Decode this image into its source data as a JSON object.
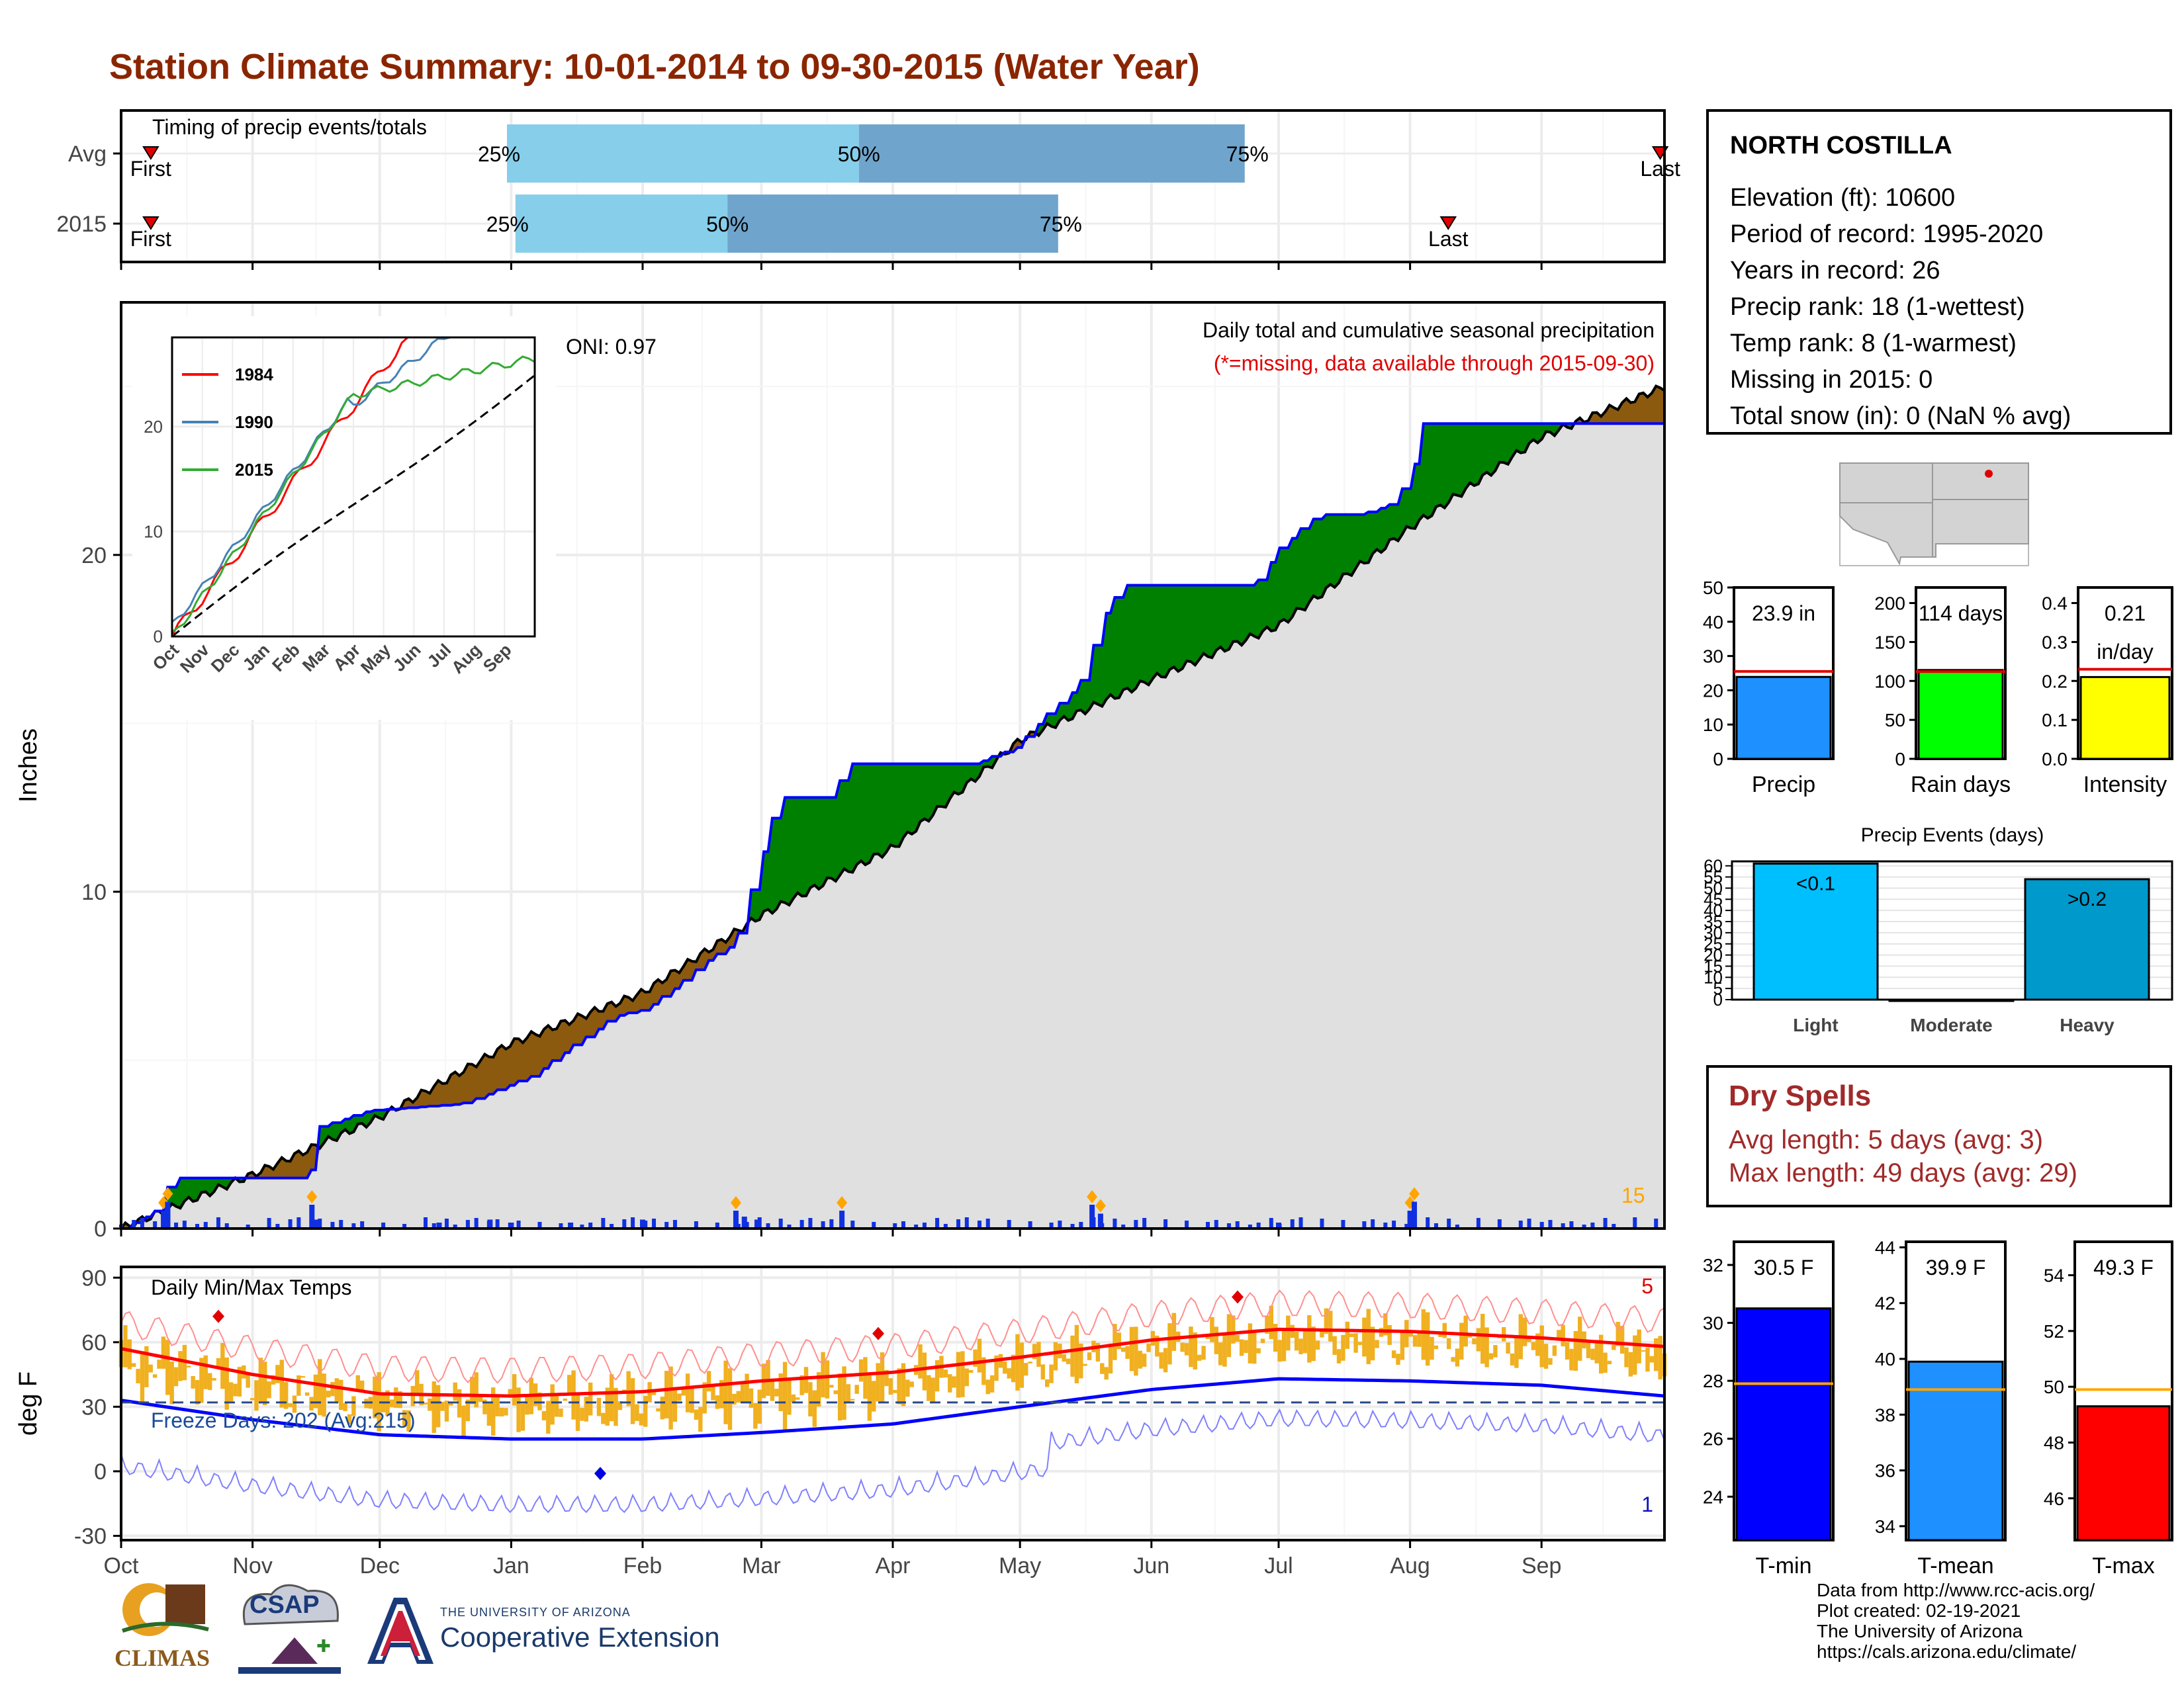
{
  "title": "Station Climate Summary: 10-01-2014 to 09-30-2015 (Water Year)",
  "station": {
    "name": "NORTH COSTILLA",
    "lines": [
      "Elevation (ft): 10600",
      "Period of record: 1995-2020",
      "Years in record: 26",
      "Precip rank: 18 (1-wettest)",
      "Temp rank: 8 (1-warmest)",
      "Missing in 2015: 0",
      "Total snow (in): 0 (NaN % avg)"
    ]
  },
  "dry_spells": {
    "title": "Dry Spells",
    "avg_line": "Avg length: 5 days (avg: 3)",
    "max_line": "Max length: 49 days (avg: 29)"
  },
  "footer": {
    "lines": [
      "Data from http://www.rcc-acis.org/",
      "Plot created: 02-19-2021",
      "The University of Arizona",
      "https://cals.arizona.edu/climate/"
    ]
  },
  "logos": {
    "climas": "CLIMAS",
    "csap": "CSAP",
    "ua_small": "THE UNIVERSITY OF ARIZONA",
    "ua_big": "Cooperative Extension"
  },
  "colors": {
    "title": "#8b2500",
    "light_blue": "#87ceeb",
    "steel_blue": "#6fa5cc",
    "green_fill": "#008000",
    "brown_fill": "#8b5a0f",
    "gray_fill": "#e0e0e0",
    "obs_line": "#0000ff",
    "tmax": "#ff0000",
    "tmin": "#0000ff",
    "temp_bars": "#f0b020",
    "precip_bar": "#1e90ff",
    "rain_bar": "#00ff00",
    "intensity_bar": "#ffff00",
    "light_events": "#00bfff",
    "heavy_events": "#0099cc",
    "tmean_bar": "#1e90ff"
  },
  "months": [
    "Oct",
    "Nov",
    "Dec",
    "Jan",
    "Feb",
    "Mar",
    "Apr",
    "May",
    "Jun",
    "Jul",
    "Aug",
    "Sep"
  ],
  "chart_data": [
    {
      "type": "bar",
      "id": "timing",
      "title": "Timing of precip events/totals",
      "categories": [
        "Avg",
        "2015"
      ],
      "first_label": "First",
      "last_label": "Last",
      "rows": [
        {
          "label": "Avg",
          "first": "2014-10-08",
          "p25": "2014-12-31",
          "p50": "2015-03-24",
          "p75": "2015-06-23",
          "last": "2015-09-29",
          "p25_label": "25%",
          "p50_label": "50%",
          "p75_label": "75%"
        },
        {
          "label": "2015",
          "first": "2014-10-08",
          "p25": "2015-01-02",
          "p50": "2015-02-21",
          "p75": "2015-05-10",
          "last": "2015-08-10",
          "p25_label": "25%",
          "p50_label": "50%",
          "p75_label": "75%"
        }
      ]
    },
    {
      "type": "area",
      "id": "cumulative",
      "title": "Daily total and cumulative seasonal precipitation",
      "subtitle": "(*=missing, data available through 2015-09-30)",
      "annotation": "ONI: 0.97",
      "ylabel": "Inches",
      "ylim": [
        0,
        27.5
      ],
      "yticks": [
        0,
        10,
        20
      ],
      "daily_max_count": "15",
      "observed_cumulative": [
        {
          "x": "2014-10-01",
          "y": 0
        },
        {
          "x": "2014-10-10",
          "y": 0.6
        },
        {
          "x": "2014-10-12",
          "y": 1.5
        },
        {
          "x": "2014-11-14",
          "y": 1.5
        },
        {
          "x": "2014-11-15",
          "y": 2.7
        },
        {
          "x": "2014-11-16",
          "y": 3.0
        },
        {
          "x": "2014-11-28",
          "y": 3.5
        },
        {
          "x": "2014-12-20",
          "y": 3.7
        },
        {
          "x": "2015-01-05",
          "y": 4.5
        },
        {
          "x": "2015-01-15",
          "y": 5.4
        },
        {
          "x": "2015-01-25",
          "y": 6.3
        },
        {
          "x": "2015-02-01",
          "y": 6.5
        },
        {
          "x": "2015-02-10",
          "y": 7.3
        },
        {
          "x": "2015-02-15",
          "y": 7.9
        },
        {
          "x": "2015-02-23",
          "y": 8.5
        },
        {
          "x": "2015-02-25",
          "y": 9.4
        },
        {
          "x": "2015-02-27",
          "y": 10.5
        },
        {
          "x": "2015-03-05",
          "y": 12.8
        },
        {
          "x": "2015-03-18",
          "y": 12.8
        },
        {
          "x": "2015-03-20",
          "y": 13.8
        },
        {
          "x": "2015-04-20",
          "y": 13.8
        },
        {
          "x": "2015-04-30",
          "y": 14.3
        },
        {
          "x": "2015-05-05",
          "y": 15.0
        },
        {
          "x": "2015-05-15",
          "y": 16.2
        },
        {
          "x": "2015-05-20",
          "y": 18.2
        },
        {
          "x": "2015-05-25",
          "y": 19.1
        },
        {
          "x": "2015-06-25",
          "y": 19.1
        },
        {
          "x": "2015-06-30",
          "y": 20.1
        },
        {
          "x": "2015-07-10",
          "y": 21.2
        },
        {
          "x": "2015-07-20",
          "y": 21.2
        },
        {
          "x": "2015-07-27",
          "y": 21.5
        },
        {
          "x": "2015-08-01",
          "y": 22.4
        },
        {
          "x": "2015-08-02",
          "y": 23.9
        },
        {
          "x": "2015-09-30",
          "y": 23.9
        }
      ],
      "average_cumulative": [
        {
          "x": "2014-10-01",
          "y": 0
        },
        {
          "x": "2014-11-01",
          "y": 1.6
        },
        {
          "x": "2014-12-01",
          "y": 3.3
        },
        {
          "x": "2015-01-01",
          "y": 5.5
        },
        {
          "x": "2015-02-01",
          "y": 7.0
        },
        {
          "x": "2015-03-01",
          "y": 9.3
        },
        {
          "x": "2015-04-01",
          "y": 11.3
        },
        {
          "x": "2015-05-01",
          "y": 14.5
        },
        {
          "x": "2015-06-01",
          "y": 16.3
        },
        {
          "x": "2015-07-01",
          "y": 17.9
        },
        {
          "x": "2015-08-01",
          "y": 20.8
        },
        {
          "x": "2015-09-01",
          "y": 23.5
        },
        {
          "x": "2015-09-30",
          "y": 25.0
        }
      ],
      "daily_events": [
        {
          "x": "2014-10-11",
          "y": 0.6
        },
        {
          "x": "2014-10-12",
          "y": 0.9
        },
        {
          "x": "2014-11-15",
          "y": 0.8
        },
        {
          "x": "2014-11-16",
          "y": 0.3
        },
        {
          "x": "2014-12-15",
          "y": 0.2
        },
        {
          "x": "2014-12-27",
          "y": 0.3
        },
        {
          "x": "2015-01-01",
          "y": 0.2
        },
        {
          "x": "2015-01-15",
          "y": 0.2
        },
        {
          "x": "2015-02-01",
          "y": 0.3
        },
        {
          "x": "2015-02-23",
          "y": 0.6
        },
        {
          "x": "2015-02-25",
          "y": 0.4
        },
        {
          "x": "2015-02-28",
          "y": 0.3
        },
        {
          "x": "2015-03-20",
          "y": 0.6
        },
        {
          "x": "2015-05-18",
          "y": 0.8
        },
        {
          "x": "2015-05-20",
          "y": 0.5
        },
        {
          "x": "2015-07-01",
          "y": 0.2
        },
        {
          "x": "2015-08-01",
          "y": 0.6
        },
        {
          "x": "2015-08-02",
          "y": 0.9
        }
      ],
      "inset": {
        "series": [
          {
            "name": "1984",
            "color": "#ff0000"
          },
          {
            "name": "1990",
            "color": "#4682b4"
          },
          {
            "name": "2015",
            "color": "#33aa33"
          }
        ],
        "yticks": [
          0,
          10,
          20
        ],
        "xticks": [
          "Oct",
          "Nov",
          "Dec",
          "Jan",
          "Feb",
          "Mar",
          "Apr",
          "May",
          "Jun",
          "Jul",
          "Aug",
          "Sep"
        ]
      }
    },
    {
      "type": "line",
      "id": "temps",
      "title": "Daily Min/Max Temps",
      "ylabel": "deg F",
      "ylim": [
        -32,
        95
      ],
      "yticks": [
        -30,
        0,
        30,
        60,
        90
      ],
      "freeze_label": "Freeze Days: 202 (Avg:215)",
      "max_count_label": "5",
      "min_count_label": "1",
      "freeze_line": 32,
      "avg_tmax": [
        {
          "x": "2014-10-01",
          "y": 57
        },
        {
          "x": "2014-11-01",
          "y": 45
        },
        {
          "x": "2014-12-01",
          "y": 36
        },
        {
          "x": "2015-01-01",
          "y": 35
        },
        {
          "x": "2015-02-01",
          "y": 37
        },
        {
          "x": "2015-03-01",
          "y": 42
        },
        {
          "x": "2015-04-01",
          "y": 46
        },
        {
          "x": "2015-05-01",
          "y": 53
        },
        {
          "x": "2015-06-01",
          "y": 61
        },
        {
          "x": "2015-07-01",
          "y": 66
        },
        {
          "x": "2015-08-01",
          "y": 65
        },
        {
          "x": "2015-09-01",
          "y": 62
        },
        {
          "x": "2015-09-30",
          "y": 58
        }
      ],
      "avg_tmin": [
        {
          "x": "2014-10-01",
          "y": 33
        },
        {
          "x": "2014-11-01",
          "y": 24
        },
        {
          "x": "2014-12-01",
          "y": 17
        },
        {
          "x": "2015-01-01",
          "y": 15
        },
        {
          "x": "2015-02-01",
          "y": 15
        },
        {
          "x": "2015-03-01",
          "y": 18
        },
        {
          "x": "2015-04-01",
          "y": 22
        },
        {
          "x": "2015-05-01",
          "y": 30
        },
        {
          "x": "2015-06-01",
          "y": 38
        },
        {
          "x": "2015-07-01",
          "y": 43
        },
        {
          "x": "2015-08-01",
          "y": 42
        },
        {
          "x": "2015-09-01",
          "y": 40
        },
        {
          "x": "2015-09-30",
          "y": 35
        }
      ]
    },
    {
      "type": "bar",
      "id": "precip_summary",
      "categories": [
        "Precip",
        "Rain days",
        "Intensity"
      ],
      "values": [
        23.9,
        114,
        0.21
      ],
      "averages": [
        25.5,
        112,
        0.23
      ],
      "value_labels": [
        "23.9 in",
        "114 days",
        "0.21\nin/day"
      ],
      "ylims": [
        [
          0,
          50
        ],
        [
          0,
          220
        ],
        [
          0,
          0.44
        ]
      ],
      "yticks": [
        [
          0,
          10,
          20,
          30,
          40,
          50
        ],
        [
          0,
          50,
          100,
          150,
          200
        ],
        [
          0.0,
          0.1,
          0.2,
          0.3,
          0.4
        ]
      ]
    },
    {
      "type": "bar",
      "id": "precip_events",
      "title": "Precip Events (days)",
      "categories": [
        "Light",
        "Moderate",
        "Heavy"
      ],
      "values": [
        61,
        0,
        54
      ],
      "value_labels": [
        "<0.1",
        "",
        ">0.2"
      ],
      "ylim": [
        0,
        62
      ],
      "yticks": [
        0,
        5,
        10,
        15,
        20,
        25,
        30,
        35,
        40,
        45,
        50,
        55,
        60
      ]
    },
    {
      "type": "bar",
      "id": "temp_summary",
      "categories": [
        "T-min",
        "T-mean",
        "T-max"
      ],
      "values": [
        30.5,
        39.9,
        49.3
      ],
      "averages": [
        27.9,
        38.9,
        49.9
      ],
      "value_labels": [
        "30.5 F",
        "39.9 F",
        "49.3 F"
      ],
      "ylims": [
        [
          22.5,
          32.8
        ],
        [
          33.5,
          44.2
        ],
        [
          44.5,
          55.2
        ]
      ],
      "yticks": [
        [
          24,
          26,
          28,
          30,
          32
        ],
        [
          34,
          36,
          38,
          40,
          42,
          44
        ],
        [
          46,
          48,
          50,
          52,
          54
        ]
      ]
    }
  ]
}
